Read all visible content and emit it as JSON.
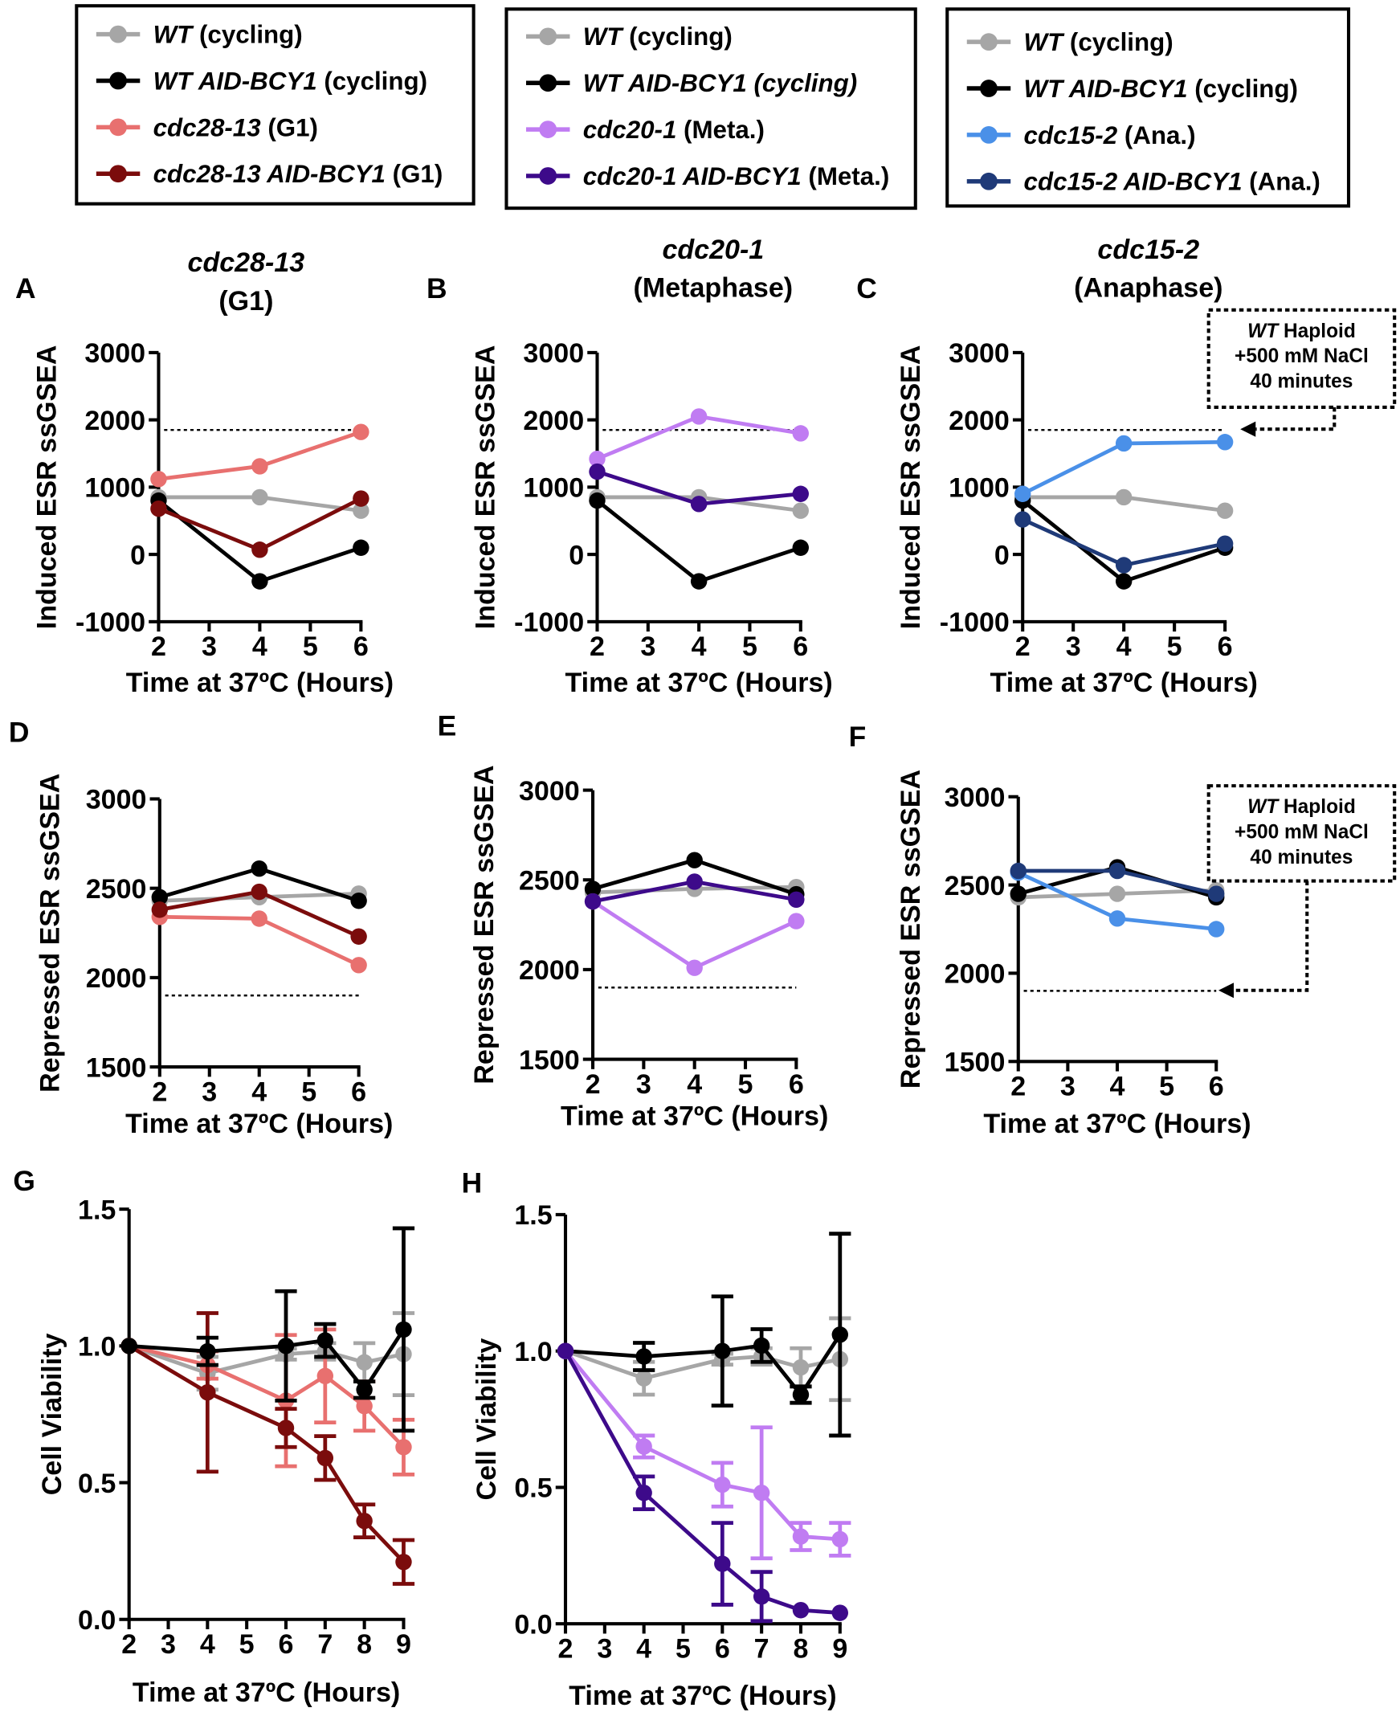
{
  "colors": {
    "wt": "#a6a6a6",
    "wt_aid": "#000000",
    "cdc28": "#e8706f",
    "cdc28_aid": "#7b0c0c",
    "cdc20": "#c07cf2",
    "cdc20_aid": "#3d0a8a",
    "cdc15": "#4a90e8",
    "cdc15_aid": "#1f3a78"
  },
  "legends": [
    {
      "entries": [
        {
          "color": "#a6a6a6",
          "parts": [
            {
              "t": "WT",
              "i": true
            },
            {
              "t": " (cycling)"
            }
          ]
        },
        {
          "color": "#000000",
          "parts": [
            {
              "t": "WT AID-BCY1",
              "i": true
            },
            {
              "t": " (cycling)"
            }
          ]
        },
        {
          "color": "#e8706f",
          "parts": [
            {
              "t": "cdc28-13",
              "i": true
            },
            {
              "t": " (G1)"
            }
          ]
        },
        {
          "color": "#7b0c0c",
          "parts": [
            {
              "t": "cdc28-13 AID-BCY1",
              "i": true
            },
            {
              "t": " (G1)"
            }
          ]
        }
      ]
    },
    {
      "entries": [
        {
          "color": "#a6a6a6",
          "parts": [
            {
              "t": "WT",
              "i": true
            },
            {
              "t": " (cycling)"
            }
          ]
        },
        {
          "color": "#000000",
          "parts": [
            {
              "t": "WT AID-BCY1 (cycling)",
              "i": true
            }
          ]
        },
        {
          "color": "#c07cf2",
          "parts": [
            {
              "t": "cdc20-1",
              "i": true
            },
            {
              "t": " (Meta.)"
            }
          ]
        },
        {
          "color": "#3d0a8a",
          "parts": [
            {
              "t": "cdc20-1 AID-BCY1",
              "i": true
            },
            {
              "t": " (Meta.)"
            }
          ]
        }
      ]
    },
    {
      "entries": [
        {
          "color": "#a6a6a6",
          "parts": [
            {
              "t": "WT",
              "i": true
            },
            {
              "t": " (cycling)"
            }
          ]
        },
        {
          "color": "#000000",
          "parts": [
            {
              "t": "WT AID-BCY1",
              "i": true
            },
            {
              "t": " (cycling)"
            }
          ]
        },
        {
          "color": "#4a90e8",
          "parts": [
            {
              "t": "cdc15-2",
              "i": true
            },
            {
              "t": " (Ana.)"
            }
          ]
        },
        {
          "color": "#1f3a78",
          "parts": [
            {
              "t": "cdc15-2 AID-BCY1",
              "i": true
            },
            {
              "t": " (Ana.)"
            }
          ]
        }
      ]
    }
  ],
  "chart_data": [
    {
      "letter": "A",
      "type": "line",
      "title": [
        [
          {
            "t": "cdc28-13",
            "i": true
          }
        ],
        [
          {
            "t": "(G1)"
          }
        ]
      ],
      "ylabel": "Induced ESR ssGSEA",
      "xlabel": "Time at 37ºC (Hours)",
      "xlim": [
        2,
        6
      ],
      "ylim": [
        -1000,
        3000
      ],
      "xticks": [
        "2",
        "3",
        "4",
        "5",
        "6"
      ],
      "yticks": [
        "3000",
        "2000",
        "1000",
        "0",
        "-1000"
      ],
      "reference_line": 1850,
      "series": [
        {
          "name": "WT (cycling)",
          "color": "#a6a6a6",
          "x": [
            2,
            4,
            6
          ],
          "y": [
            850,
            850,
            650
          ]
        },
        {
          "name": "WT AID-BCY1 (cycling)",
          "color": "#000000",
          "x": [
            2,
            4,
            6
          ],
          "y": [
            800,
            -400,
            100
          ]
        },
        {
          "name": "cdc28-13 (G1)",
          "color": "#e8706f",
          "x": [
            2,
            4,
            6
          ],
          "y": [
            1120,
            1310,
            1820
          ]
        },
        {
          "name": "cdc28-13 AID-BCY1 (G1)",
          "color": "#7b0c0c",
          "x": [
            2,
            4,
            6
          ],
          "y": [
            680,
            70,
            830
          ]
        }
      ]
    },
    {
      "letter": "B",
      "type": "line",
      "title": [
        [
          {
            "t": "cdc20-1",
            "i": true
          }
        ],
        [
          {
            "t": "(Metaphase)"
          }
        ]
      ],
      "ylabel": "Induced ESR ssGSEA",
      "xlabel": "Time at 37ºC (Hours)",
      "xlim": [
        2,
        6
      ],
      "ylim": [
        -1000,
        3000
      ],
      "xticks": [
        "2",
        "3",
        "4",
        "5",
        "6"
      ],
      "yticks": [
        "3000",
        "2000",
        "1000",
        "0",
        "-1000"
      ],
      "reference_line": 1850,
      "series": [
        {
          "name": "WT (cycling)",
          "color": "#a6a6a6",
          "x": [
            2,
            4,
            6
          ],
          "y": [
            850,
            850,
            650
          ]
        },
        {
          "name": "WT AID-BCY1 (cycling)",
          "color": "#000000",
          "x": [
            2,
            4,
            6
          ],
          "y": [
            800,
            -400,
            100
          ]
        },
        {
          "name": "cdc20-1 (Meta.)",
          "color": "#c07cf2",
          "x": [
            2,
            4,
            6
          ],
          "y": [
            1420,
            2050,
            1800
          ]
        },
        {
          "name": "cdc20-1 AID-BCY1 (Meta.)",
          "color": "#3d0a8a",
          "x": [
            2,
            4,
            6
          ],
          "y": [
            1230,
            750,
            900
          ]
        }
      ]
    },
    {
      "letter": "C",
      "type": "line",
      "title": [
        [
          {
            "t": "cdc15-2",
            "i": true
          }
        ],
        [
          {
            "t": "(Anaphase)"
          }
        ]
      ],
      "ylabel": "Induced ESR ssGSEA",
      "xlabel": "Time at 37ºC (Hours)",
      "xlim": [
        2,
        6
      ],
      "ylim": [
        -1000,
        3000
      ],
      "xticks": [
        "2",
        "3",
        "4",
        "5",
        "6"
      ],
      "yticks": [
        "3000",
        "2000",
        "1000",
        "0",
        "-1000"
      ],
      "reference_line": 1850,
      "annotation": [
        [
          {
            "t": "WT",
            "i": true
          },
          {
            "t": " Haploid"
          }
        ],
        [
          {
            "t": "+500 mM NaCl"
          }
        ],
        [
          {
            "t": "40 minutes"
          }
        ]
      ],
      "series": [
        {
          "name": "WT (cycling)",
          "color": "#a6a6a6",
          "x": [
            2,
            4,
            6
          ],
          "y": [
            850,
            850,
            650
          ]
        },
        {
          "name": "WT AID-BCY1 (cycling)",
          "color": "#000000",
          "x": [
            2,
            4,
            6
          ],
          "y": [
            800,
            -400,
            100
          ]
        },
        {
          "name": "cdc15-2 (Ana.)",
          "color": "#4a90e8",
          "x": [
            2,
            4,
            6
          ],
          "y": [
            900,
            1650,
            1670
          ]
        },
        {
          "name": "cdc15-2 AID-BCY1 (Ana.)",
          "color": "#1f3a78",
          "x": [
            2,
            4,
            6
          ],
          "y": [
            520,
            -160,
            160
          ]
        }
      ]
    },
    {
      "letter": "D",
      "type": "line",
      "title": [],
      "ylabel": "Repressed ESR ssGSEA",
      "xlabel": "Time at 37ºC (Hours)",
      "xlim": [
        2,
        6
      ],
      "ylim": [
        1500,
        3000
      ],
      "xticks": [
        "2",
        "3",
        "4",
        "5",
        "6"
      ],
      "yticks": [
        "3000",
        "2500",
        "2000",
        "1500"
      ],
      "reference_line": 1900,
      "series": [
        {
          "name": "WT (cycling)",
          "color": "#a6a6a6",
          "x": [
            2,
            4,
            6
          ],
          "y": [
            2430,
            2450,
            2470
          ]
        },
        {
          "name": "WT AID-BCY1 (cycling)",
          "color": "#000000",
          "x": [
            2,
            4,
            6
          ],
          "y": [
            2450,
            2610,
            2430
          ]
        },
        {
          "name": "cdc28-13 (G1)",
          "color": "#e8706f",
          "x": [
            2,
            4,
            6
          ],
          "y": [
            2340,
            2330,
            2070
          ]
        },
        {
          "name": "cdc28-13 AID-BCY1 (G1)",
          "color": "#7b0c0c",
          "x": [
            2,
            4,
            6
          ],
          "y": [
            2380,
            2480,
            2230
          ]
        }
      ]
    },
    {
      "letter": "E",
      "type": "line",
      "title": [],
      "ylabel": "Repressed ESR ssGSEA",
      "xlabel": "Time at 37ºC (Hours)",
      "xlim": [
        2,
        6
      ],
      "ylim": [
        1500,
        3000
      ],
      "xticks": [
        "2",
        "3",
        "4",
        "5",
        "6"
      ],
      "yticks": [
        "3000",
        "2500",
        "2000",
        "1500"
      ],
      "reference_line": 1900,
      "series": [
        {
          "name": "WT (cycling)",
          "color": "#a6a6a6",
          "x": [
            2,
            4,
            6
          ],
          "y": [
            2430,
            2450,
            2460
          ]
        },
        {
          "name": "WT AID-BCY1 (cycling)",
          "color": "#000000",
          "x": [
            2,
            4,
            6
          ],
          "y": [
            2450,
            2610,
            2420
          ]
        },
        {
          "name": "cdc20-1 (Meta.)",
          "color": "#c07cf2",
          "x": [
            2,
            4,
            6
          ],
          "y": [
            2380,
            2010,
            2270
          ]
        },
        {
          "name": "cdc20-1 AID-BCY1 (Meta.)",
          "color": "#3d0a8a",
          "x": [
            2,
            4,
            6
          ],
          "y": [
            2380,
            2490,
            2390
          ]
        }
      ]
    },
    {
      "letter": "F",
      "type": "line",
      "title": [],
      "ylabel": "Repressed ESR ssGSEA",
      "xlabel": "Time at 37ºC (Hours)",
      "xlim": [
        2,
        6
      ],
      "ylim": [
        1500,
        3000
      ],
      "xticks": [
        "2",
        "3",
        "4",
        "5",
        "6"
      ],
      "yticks": [
        "3000",
        "2500",
        "2000",
        "1500"
      ],
      "reference_line": 1900,
      "annotation": [
        [
          {
            "t": "WT",
            "i": true
          },
          {
            "t": " Haploid"
          }
        ],
        [
          {
            "t": "+500 mM NaCl"
          }
        ],
        [
          {
            "t": "40 minutes"
          }
        ]
      ],
      "series": [
        {
          "name": "WT (cycling)",
          "color": "#a6a6a6",
          "x": [
            2,
            4,
            6
          ],
          "y": [
            2430,
            2450,
            2470
          ]
        },
        {
          "name": "WT AID-BCY1 (cycling)",
          "color": "#000000",
          "x": [
            2,
            4,
            6
          ],
          "y": [
            2450,
            2600,
            2430
          ]
        },
        {
          "name": "cdc15-2 (Ana.)",
          "color": "#4a90e8",
          "x": [
            2,
            4,
            6
          ],
          "y": [
            2570,
            2310,
            2250
          ]
        },
        {
          "name": "cdc15-2 AID-BCY1 (Ana.)",
          "color": "#1f3a78",
          "x": [
            2,
            4,
            6
          ],
          "y": [
            2580,
            2580,
            2450
          ]
        }
      ]
    },
    {
      "letter": "G",
      "type": "line",
      "title": [],
      "ylabel": "Cell Viability",
      "xlabel": "Time at 37ºC (Hours)",
      "xlim": [
        2,
        9
      ],
      "ylim": [
        0,
        1.5
      ],
      "xticks": [
        "2",
        "3",
        "4",
        "5",
        "6",
        "7",
        "8",
        "9"
      ],
      "yticks": [
        "1.5",
        "1.0",
        "0.5",
        "0.0"
      ],
      "series": [
        {
          "name": "WT (cycling)",
          "color": "#a6a6a6",
          "x": [
            2,
            4,
            6,
            7,
            8,
            9
          ],
          "y": [
            1.0,
            0.9,
            0.97,
            0.98,
            0.94,
            0.97
          ],
          "err": [
            0,
            0.06,
            0.02,
            0.03,
            0.07,
            0.15
          ]
        },
        {
          "name": "cdc28-13 (G1)",
          "color": "#e8706f",
          "x": [
            2,
            4,
            6,
            7,
            8,
            9
          ],
          "y": [
            1.0,
            0.93,
            0.8,
            0.89,
            0.78,
            0.63
          ],
          "err": [
            0,
            0.05,
            0.24,
            0.17,
            0.09,
            0.1
          ]
        },
        {
          "name": "cdc28-13 AID-BCY1 (G1)",
          "color": "#7b0c0c",
          "x": [
            2,
            4,
            6,
            7,
            8,
            9
          ],
          "y": [
            1.0,
            0.83,
            0.7,
            0.59,
            0.36,
            0.21
          ],
          "err": [
            0,
            0.29,
            0.07,
            0.08,
            0.06,
            0.08
          ]
        },
        {
          "name": "WT AID-BCY1 (cycling)",
          "color": "#000000",
          "x": [
            2,
            4,
            6,
            7,
            8,
            9
          ],
          "y": [
            1.0,
            0.98,
            1.0,
            1.02,
            0.84,
            1.06
          ],
          "err": [
            0,
            0.05,
            0.2,
            0.06,
            0.03,
            0.37
          ]
        }
      ]
    },
    {
      "letter": "H",
      "type": "line",
      "title": [],
      "ylabel": "Cell Viability",
      "xlabel": "Time at 37ºC (Hours)",
      "xlim": [
        2,
        9
      ],
      "ylim": [
        0,
        1.5
      ],
      "xticks": [
        "2",
        "3",
        "4",
        "5",
        "6",
        "7",
        "8",
        "9"
      ],
      "yticks": [
        "1.5",
        "1.0",
        "0.5",
        "0.0"
      ],
      "series": [
        {
          "name": "WT (cycling)",
          "color": "#a6a6a6",
          "x": [
            2,
            4,
            6,
            7,
            8,
            9
          ],
          "y": [
            1.0,
            0.9,
            0.97,
            0.98,
            0.94,
            0.97
          ],
          "err": [
            0,
            0.06,
            0.02,
            0.03,
            0.07,
            0.15
          ]
        },
        {
          "name": "WT AID-BCY1 (cycling)",
          "color": "#000000",
          "x": [
            2,
            4,
            6,
            7,
            8,
            9
          ],
          "y": [
            1.0,
            0.98,
            1.0,
            1.02,
            0.84,
            1.06
          ],
          "err": [
            0,
            0.05,
            0.2,
            0.06,
            0.03,
            0.37
          ]
        },
        {
          "name": "cdc20-1 (Meta.)",
          "color": "#c07cf2",
          "x": [
            2,
            4,
            6,
            7,
            8,
            9
          ],
          "y": [
            1.0,
            0.65,
            0.51,
            0.48,
            0.32,
            0.31
          ],
          "err": [
            0,
            0.04,
            0.08,
            0.24,
            0.05,
            0.06
          ]
        },
        {
          "name": "cdc20-1 AID-BCY1 (Meta.)",
          "color": "#3d0a8a",
          "x": [
            2,
            4,
            6,
            7,
            8,
            9
          ],
          "y": [
            1.0,
            0.48,
            0.22,
            0.1,
            0.05,
            0.04
          ],
          "err": [
            0,
            0.06,
            0.15,
            0.09,
            0,
            0
          ]
        }
      ]
    }
  ]
}
